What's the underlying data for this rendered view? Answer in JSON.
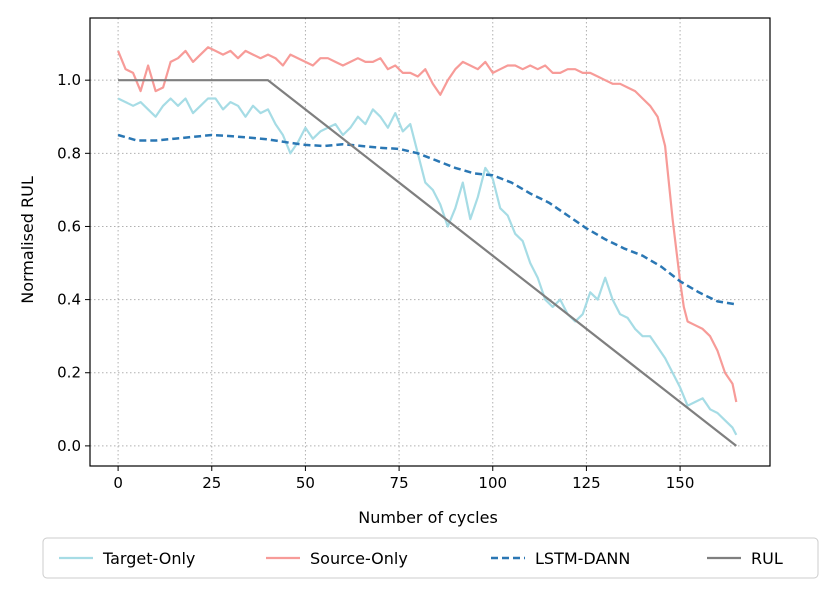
{
  "chart_data": {
    "type": "line",
    "title": "",
    "xlabel": "Number of cycles",
    "ylabel": "Normalised RUL",
    "xlim": [
      -7.5,
      174
    ],
    "ylim": [
      -0.055,
      1.17
    ],
    "xticks": [
      0,
      25,
      50,
      75,
      100,
      125,
      150
    ],
    "yticks": [
      0.0,
      0.2,
      0.4,
      0.6,
      0.8,
      1.0
    ],
    "xtick_labels": [
      "0",
      "25",
      "50",
      "75",
      "100",
      "125",
      "150"
    ],
    "ytick_labels": [
      "0.0",
      "0.2",
      "0.4",
      "0.6",
      "0.8",
      "1.0"
    ],
    "grid": true,
    "legend_position": "bottom-outside",
    "series": [
      {
        "name": "Target-Only",
        "color": "#a6dce5",
        "style": "solid",
        "x": [
          0,
          2,
          4,
          6,
          8,
          10,
          12,
          14,
          16,
          18,
          20,
          22,
          24,
          26,
          28,
          30,
          32,
          34,
          36,
          38,
          40,
          42,
          44,
          46,
          48,
          50,
          52,
          54,
          56,
          58,
          60,
          62,
          64,
          66,
          68,
          70,
          72,
          74,
          76,
          78,
          80,
          82,
          84,
          86,
          88,
          90,
          92,
          94,
          96,
          98,
          100,
          102,
          104,
          106,
          108,
          110,
          112,
          114,
          116,
          118,
          120,
          122,
          124,
          126,
          128,
          130,
          132,
          134,
          136,
          138,
          140,
          142,
          144,
          146,
          148,
          150,
          152,
          154,
          156,
          158,
          160,
          162,
          164,
          165
        ],
        "values": [
          0.95,
          0.94,
          0.93,
          0.94,
          0.92,
          0.9,
          0.93,
          0.95,
          0.93,
          0.95,
          0.91,
          0.93,
          0.95,
          0.95,
          0.92,
          0.94,
          0.93,
          0.9,
          0.93,
          0.91,
          0.92,
          0.88,
          0.85,
          0.8,
          0.83,
          0.87,
          0.84,
          0.86,
          0.87,
          0.88,
          0.85,
          0.87,
          0.9,
          0.88,
          0.92,
          0.9,
          0.87,
          0.91,
          0.86,
          0.88,
          0.8,
          0.72,
          0.7,
          0.66,
          0.6,
          0.65,
          0.72,
          0.62,
          0.68,
          0.76,
          0.73,
          0.65,
          0.63,
          0.58,
          0.56,
          0.5,
          0.46,
          0.4,
          0.38,
          0.4,
          0.36,
          0.34,
          0.36,
          0.42,
          0.4,
          0.46,
          0.4,
          0.36,
          0.35,
          0.32,
          0.3,
          0.3,
          0.27,
          0.24,
          0.2,
          0.16,
          0.11,
          0.12,
          0.13,
          0.1,
          0.09,
          0.07,
          0.05,
          0.03
        ]
      },
      {
        "name": "Source-Only",
        "color": "#f79b98",
        "style": "solid",
        "x": [
          0,
          2,
          4,
          6,
          8,
          10,
          12,
          14,
          16,
          18,
          20,
          22,
          24,
          26,
          28,
          30,
          32,
          34,
          36,
          38,
          40,
          42,
          44,
          46,
          48,
          50,
          52,
          54,
          56,
          58,
          60,
          62,
          64,
          66,
          68,
          70,
          72,
          74,
          76,
          78,
          80,
          82,
          84,
          86,
          88,
          90,
          92,
          94,
          96,
          98,
          100,
          102,
          104,
          106,
          108,
          110,
          112,
          114,
          116,
          118,
          120,
          122,
          124,
          126,
          128,
          130,
          132,
          134,
          136,
          138,
          140,
          142,
          144,
          146,
          148,
          150,
          151,
          152,
          154,
          156,
          158,
          160,
          162,
          164,
          165
        ],
        "values": [
          1.08,
          1.03,
          1.02,
          0.97,
          1.04,
          0.97,
          0.98,
          1.05,
          1.06,
          1.08,
          1.05,
          1.07,
          1.09,
          1.08,
          1.07,
          1.08,
          1.06,
          1.08,
          1.07,
          1.06,
          1.07,
          1.06,
          1.04,
          1.07,
          1.06,
          1.05,
          1.04,
          1.06,
          1.06,
          1.05,
          1.04,
          1.05,
          1.06,
          1.05,
          1.05,
          1.06,
          1.03,
          1.04,
          1.02,
          1.02,
          1.01,
          1.03,
          0.99,
          0.96,
          1.0,
          1.03,
          1.05,
          1.04,
          1.03,
          1.05,
          1.02,
          1.03,
          1.04,
          1.04,
          1.03,
          1.04,
          1.03,
          1.04,
          1.02,
          1.02,
          1.03,
          1.03,
          1.02,
          1.02,
          1.01,
          1.0,
          0.99,
          0.99,
          0.98,
          0.97,
          0.95,
          0.93,
          0.9,
          0.82,
          0.62,
          0.45,
          0.38,
          0.34,
          0.33,
          0.32,
          0.3,
          0.26,
          0.2,
          0.17,
          0.12
        ]
      },
      {
        "name": "LSTM-DANN",
        "color": "#2a77b4",
        "style": "dashed",
        "x": [
          0,
          5,
          10,
          15,
          20,
          25,
          30,
          35,
          40,
          45,
          50,
          55,
          60,
          65,
          70,
          75,
          80,
          85,
          90,
          95,
          100,
          105,
          110,
          115,
          120,
          125,
          130,
          135,
          140,
          145,
          150,
          155,
          160,
          165
        ],
        "values": [
          0.85,
          0.835,
          0.835,
          0.84,
          0.845,
          0.85,
          0.847,
          0.843,
          0.838,
          0.83,
          0.823,
          0.82,
          0.825,
          0.82,
          0.815,
          0.812,
          0.8,
          0.78,
          0.76,
          0.745,
          0.74,
          0.72,
          0.69,
          0.665,
          0.63,
          0.595,
          0.565,
          0.54,
          0.52,
          0.49,
          0.45,
          0.42,
          0.395,
          0.387
        ]
      },
      {
        "name": "RUL",
        "color": "#7f7f7f",
        "style": "solid",
        "x": [
          0,
          40,
          165
        ],
        "values": [
          1.0,
          1.0,
          0.0
        ]
      }
    ]
  }
}
